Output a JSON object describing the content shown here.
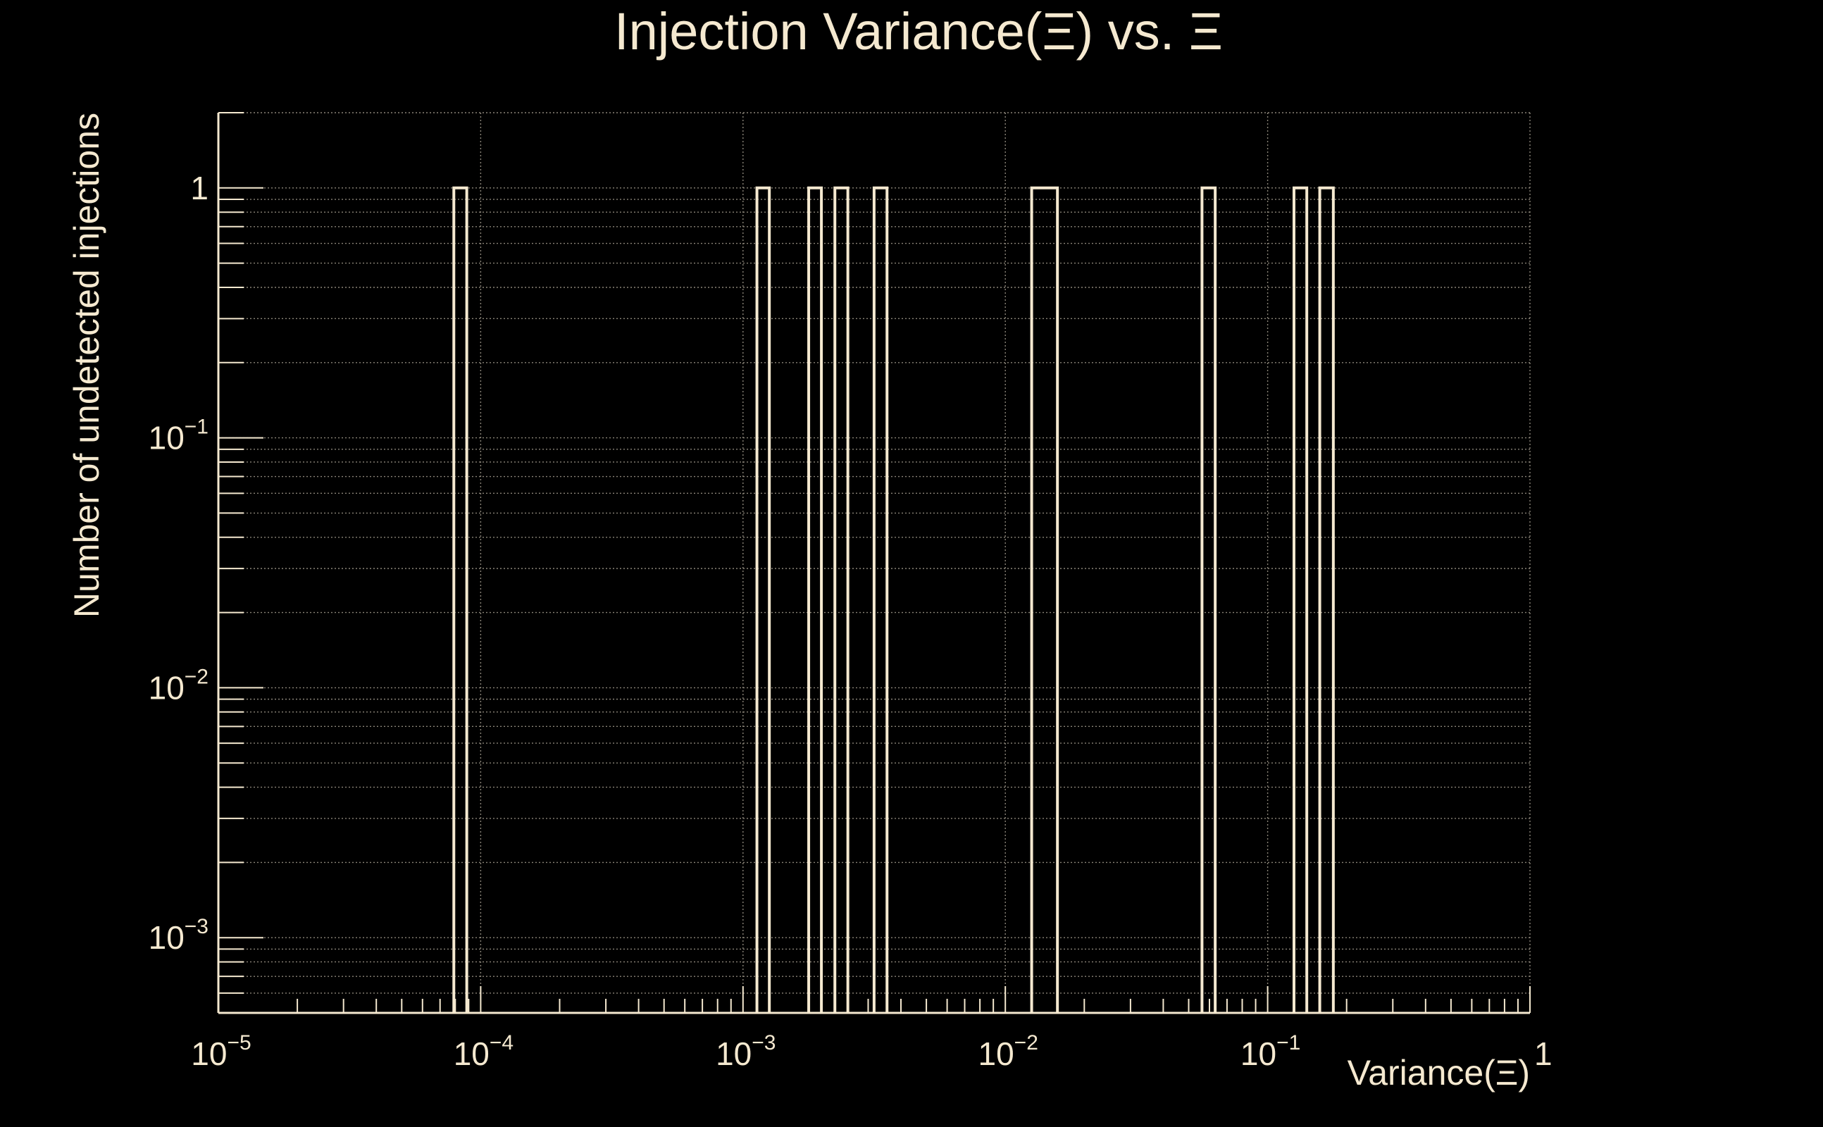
{
  "colors": {
    "background": "#000000",
    "foreground": "#f5e9d0",
    "grid": "#8a8478"
  },
  "chart_data": {
    "type": "bar",
    "title": "Injection Variance(Ξ) vs. Ξ",
    "xlabel": "Variance(Ξ)",
    "ylabel": "Number of undetected injections",
    "x_scale": "log",
    "y_scale": "log",
    "xlim": [
      1e-05,
      1
    ],
    "ylim": [
      0.0005,
      2
    ],
    "grid": true,
    "x_ticks": [
      {
        "base": "10",
        "exp": "−5"
      },
      {
        "base": "10",
        "exp": "−4"
      },
      {
        "base": "10",
        "exp": "−3"
      },
      {
        "base": "10",
        "exp": "−2"
      },
      {
        "base": "10",
        "exp": "−1"
      },
      {
        "base": "1",
        "exp": ""
      }
    ],
    "y_ticks": [
      {
        "base": "1",
        "exp": ""
      },
      {
        "base": "10",
        "exp": "−1"
      },
      {
        "base": "10",
        "exp": "−2"
      },
      {
        "base": "10",
        "exp": "−3"
      }
    ],
    "bins": [
      {
        "x0": 7.9e-05,
        "x1": 8.85e-05,
        "value": 1
      },
      {
        "x0": 0.00113,
        "x1": 0.00126,
        "value": 1
      },
      {
        "x0": 0.00178,
        "x1": 0.00199,
        "value": 1
      },
      {
        "x0": 0.00224,
        "x1": 0.00251,
        "value": 1
      },
      {
        "x0": 0.00316,
        "x1": 0.00354,
        "value": 1
      },
      {
        "x0": 0.0126,
        "x1": 0.0158,
        "value": 1
      },
      {
        "x0": 0.0562,
        "x1": 0.0631,
        "value": 1
      },
      {
        "x0": 0.126,
        "x1": 0.141,
        "value": 1
      },
      {
        "x0": 0.158,
        "x1": 0.178,
        "value": 1
      }
    ]
  }
}
